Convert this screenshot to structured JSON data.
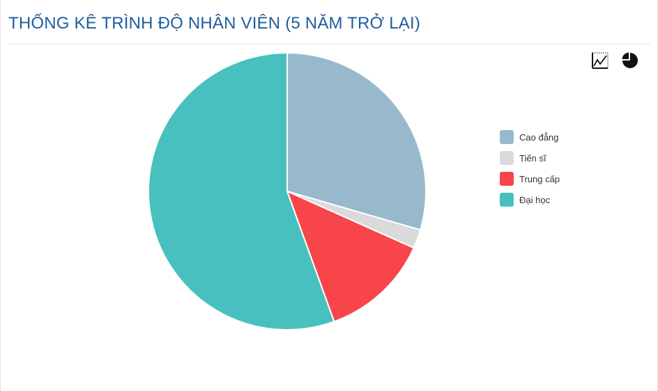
{
  "header": {
    "title": "THỐNG KÊ TRÌNH ĐỘ NHÂN VIÊN (5 NĂM TRỞ LẠI)"
  },
  "toolbar": {
    "buttons": [
      {
        "icon": "line-chart-icon"
      },
      {
        "icon": "pie-chart-icon"
      }
    ]
  },
  "colors": {
    "title": "#1f5c9e"
  },
  "chart_data": {
    "type": "pie",
    "title": "THỐNG KÊ TRÌNH ĐỘ NHÂN VIÊN (5 NĂM TRỞ LẠI)",
    "legend_position": "right",
    "slices": [
      {
        "label": "Cao đẳng",
        "value": 29.5,
        "color": "#98b9cc"
      },
      {
        "label": "Tiến sĩ",
        "value": 2.2,
        "color": "#dadada"
      },
      {
        "label": "Trung cấp",
        "value": 12.8,
        "color": "#f7454a"
      },
      {
        "label": "Đại học",
        "value": 55.5,
        "color": "#48c0bf"
      }
    ]
  }
}
